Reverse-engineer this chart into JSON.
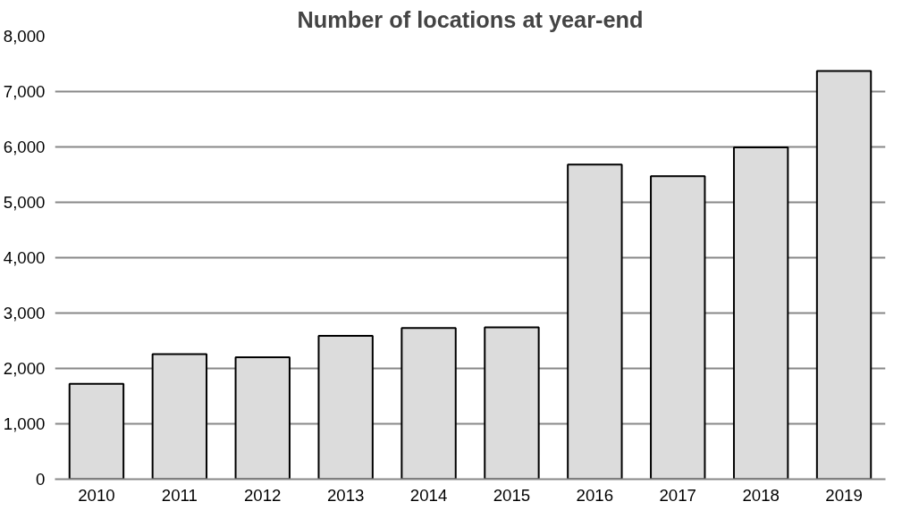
{
  "chart_data": {
    "type": "bar",
    "title": "Number of locations at year-end",
    "categories": [
      "2010",
      "2011",
      "2012",
      "2013",
      "2014",
      "2015",
      "2016",
      "2017",
      "2018",
      "2019"
    ],
    "values": [
      1720,
      2260,
      2200,
      2590,
      2730,
      2740,
      5680,
      5470,
      5990,
      7370
    ],
    "color": "#dcdcdc",
    "ylim": [
      0,
      8000
    ],
    "yticks": [
      {
        "value": 0,
        "label": "0"
      },
      {
        "value": 1000,
        "label": "1,000"
      },
      {
        "value": 2000,
        "label": "2,000"
      },
      {
        "value": 3000,
        "label": "3,000"
      },
      {
        "value": 4000,
        "label": "4,000"
      },
      {
        "value": 5000,
        "label": "5,000"
      },
      {
        "value": 6000,
        "label": "6,000"
      },
      {
        "value": 7000,
        "label": "7,000"
      },
      {
        "value": 8000,
        "label": "8,000"
      }
    ],
    "grid": "y"
  }
}
